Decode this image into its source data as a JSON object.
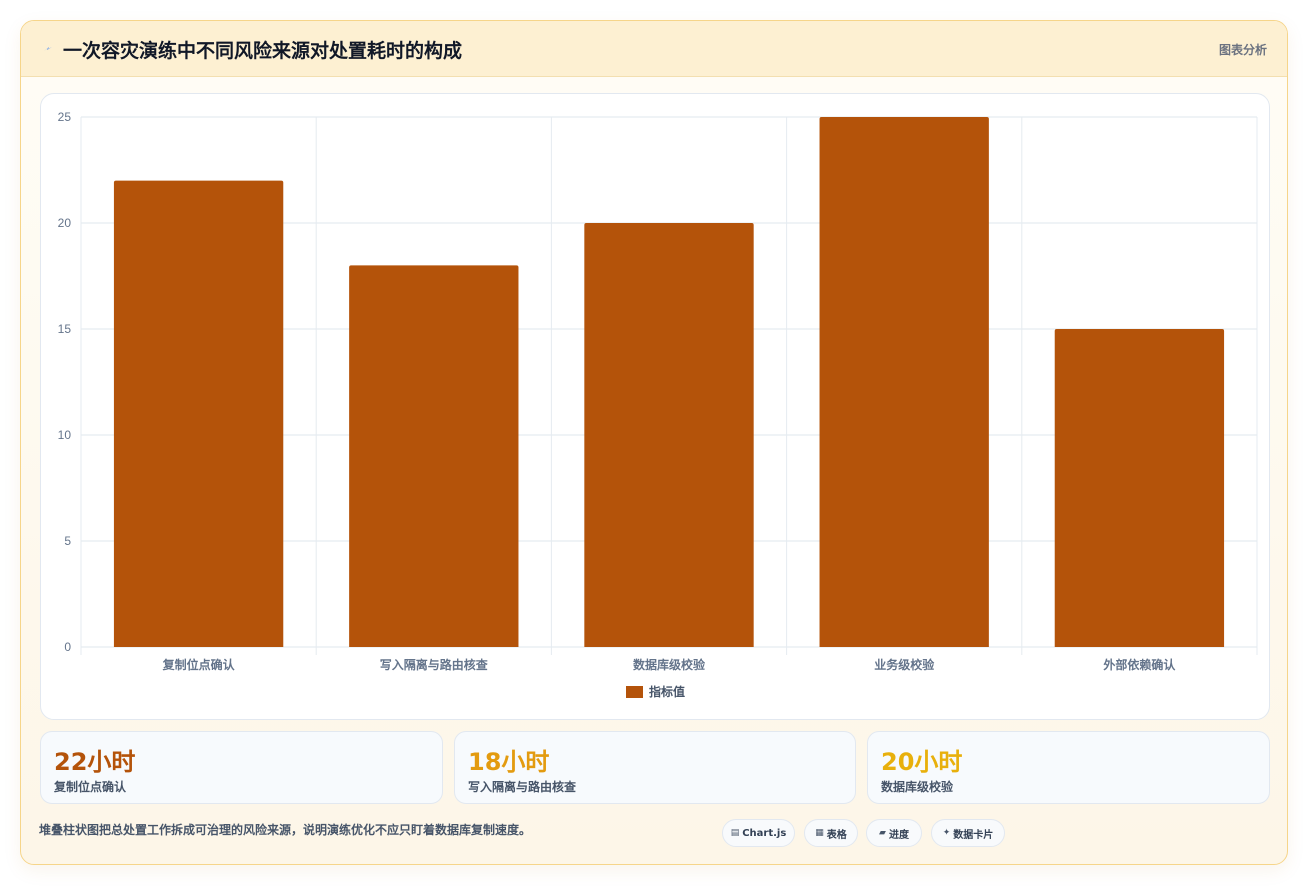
{
  "header": {
    "icon": "lightning-icon",
    "title": "一次容灾演练中不同风险来源对处置耗时的构成",
    "link_label": "图表分析"
  },
  "chart_data": {
    "type": "bar",
    "categories": [
      "复制位点确认",
      "写入隔离与路由核查",
      "数据库级校验",
      "业务级校验",
      "外部依赖确认"
    ],
    "series": [
      {
        "name": "指标值",
        "values": [
          22,
          18,
          20,
          25,
          15
        ],
        "color": "#b4530a"
      }
    ],
    "ylim": [
      0,
      25
    ],
    "yticks": [
      0,
      5,
      10,
      15,
      20,
      25
    ],
    "grid": true,
    "legend_position": "bottom"
  },
  "stats": [
    {
      "value": "22小时",
      "label": "复制位点确认",
      "color": "#b4530a"
    },
    {
      "value": "18小时",
      "label": "写入隔离与路由核查",
      "color": "#e39b10"
    },
    {
      "value": "20小时",
      "label": "数据库级校验",
      "color": "#e8b00c"
    }
  ],
  "footer": {
    "note": "堆叠柱状图把总处置工作拆成可治理的风险来源，说明演练优化不应只盯着数据库复制速度。",
    "chips": [
      {
        "icon": "floppy-icon",
        "glyph": "▤",
        "label": "Chart.js"
      },
      {
        "icon": "table-icon",
        "glyph": "▦",
        "label": "表格"
      },
      {
        "icon": "progress-icon",
        "glyph": "▰",
        "label": "进度"
      },
      {
        "icon": "sparkle-icon",
        "glyph": "✦",
        "label": "数据卡片"
      }
    ]
  }
}
